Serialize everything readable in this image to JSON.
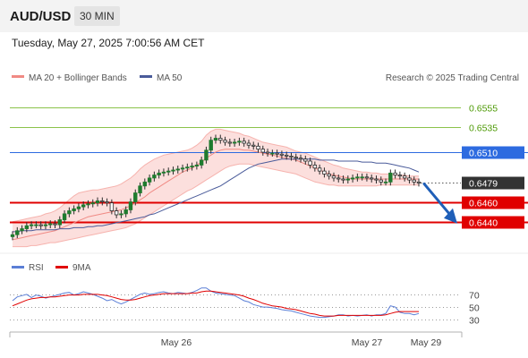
{
  "header": {
    "symbol": "AUD/USD",
    "timeframe": "30 MIN",
    "datetime": "Tuesday, May 27, 2025 7:00:56 AM CET"
  },
  "legend": {
    "bollinger": "MA 20 + Bollinger Bands",
    "ma50": "MA 50",
    "credit": "Research © 2025 Trading Central",
    "rsi": "RSI",
    "rsi_ma": "9MA"
  },
  "colors": {
    "bollinger": "#f08a84",
    "band_fill": "#fcd9d7",
    "ma50": "#4a5b9a",
    "resistance": "#8bc34a",
    "pivot": "#2d6be0",
    "support": "#e00000",
    "last": "#333333",
    "candle": "#1e7b2e",
    "arrow": "#1f5fb8",
    "rsi": "#5b7fd6",
    "rsi_ma": "#e00000"
  },
  "chart_data": [
    {
      "type": "candlestick",
      "title": "",
      "ylim": [
        0.6411,
        0.6573
      ],
      "x_ticks": [
        "May 26",
        "May 27",
        "May 29"
      ],
      "levels": [
        {
          "value": "0.6555",
          "kind": "resistance"
        },
        {
          "value": "0.6535",
          "kind": "resistance"
        },
        {
          "value": "0.6510",
          "kind": "pivot"
        },
        {
          "value": "0.6479",
          "kind": "last"
        },
        {
          "value": "0.6460",
          "kind": "support"
        },
        {
          "value": "0.6440",
          "kind": "support"
        }
      ],
      "price": [
        0.6427,
        0.6431,
        0.6433,
        0.6436,
        0.6437,
        0.6437,
        0.6436,
        0.6437,
        0.6438,
        0.6437,
        0.6442,
        0.6448,
        0.6451,
        0.6453,
        0.6455,
        0.6457,
        0.6458,
        0.6459,
        0.6461,
        0.646,
        0.6459,
        0.6451,
        0.6447,
        0.6448,
        0.6452,
        0.646,
        0.6469,
        0.6476,
        0.648,
        0.6484,
        0.6487,
        0.6489,
        0.649,
        0.6491,
        0.6492,
        0.6493,
        0.6494,
        0.6495,
        0.6496,
        0.6497,
        0.6502,
        0.6512,
        0.6522,
        0.6524,
        0.6522,
        0.652,
        0.6519,
        0.652,
        0.6521,
        0.6519,
        0.6517,
        0.6516,
        0.6513,
        0.651,
        0.6509,
        0.6509,
        0.6508,
        0.6507,
        0.6506,
        0.6505,
        0.6504,
        0.6503,
        0.6501,
        0.6497,
        0.6494,
        0.6491,
        0.6488,
        0.6486,
        0.6484,
        0.6483,
        0.6482,
        0.6483,
        0.6484,
        0.6485,
        0.6485,
        0.6484,
        0.6483,
        0.6482,
        0.648,
        0.648,
        0.6489,
        0.6487,
        0.6486,
        0.6484,
        0.6482,
        0.648,
        0.6479
      ],
      "ma20": [
        0.6422,
        0.6423,
        0.6424,
        0.6425,
        0.6426,
        0.6427,
        0.6428,
        0.6429,
        0.643,
        0.6431,
        0.6433,
        0.6435,
        0.6437,
        0.6439,
        0.6441,
        0.6443,
        0.6445,
        0.6446,
        0.6447,
        0.6448,
        0.6449,
        0.645,
        0.6451,
        0.6452,
        0.6454,
        0.6456,
        0.6459,
        0.6462,
        0.6465,
        0.6469,
        0.6472,
        0.6475,
        0.6478,
        0.6481,
        0.6484,
        0.6487,
        0.649,
        0.6492,
        0.6494,
        0.6497,
        0.65,
        0.6504,
        0.6507,
        0.651,
        0.6512,
        0.6513,
        0.6513,
        0.6513,
        0.6513,
        0.6512,
        0.6512,
        0.6511,
        0.651,
        0.6509,
        0.6508,
        0.6507,
        0.6506,
        0.6505,
        0.6504,
        0.6503,
        0.6502,
        0.65,
        0.6498,
        0.6496,
        0.6494,
        0.6492,
        0.649,
        0.6488,
        0.6487,
        0.6486,
        0.6485,
        0.6484,
        0.6483,
        0.6483,
        0.6483,
        0.6483,
        0.6483,
        0.6483,
        0.6483,
        0.6483,
        0.6483,
        0.6483,
        0.6483,
        0.6483,
        0.6483,
        0.6483,
        0.6483
      ],
      "bb_upper": [
        0.644,
        0.6441,
        0.6442,
        0.6443,
        0.6444,
        0.6445,
        0.6446,
        0.6448,
        0.6449,
        0.6451,
        0.6454,
        0.6458,
        0.6462,
        0.6466,
        0.6469,
        0.647,
        0.6471,
        0.6472,
        0.6472,
        0.6473,
        0.6474,
        0.6475,
        0.6476,
        0.6478,
        0.6481,
        0.6484,
        0.6488,
        0.6493,
        0.6497,
        0.65,
        0.6503,
        0.6505,
        0.6507,
        0.6508,
        0.6509,
        0.651,
        0.6511,
        0.6512,
        0.6514,
        0.6517,
        0.6521,
        0.6527,
        0.6531,
        0.6533,
        0.6533,
        0.6532,
        0.6531,
        0.653,
        0.6529,
        0.6527,
        0.6526,
        0.6524,
        0.6522,
        0.652,
        0.6519,
        0.6518,
        0.6517,
        0.6516,
        0.6515,
        0.6513,
        0.6511,
        0.651,
        0.6509,
        0.6507,
        0.6505,
        0.6503,
        0.6501,
        0.6499,
        0.6497,
        0.6496,
        0.6494,
        0.6493,
        0.6492,
        0.6491,
        0.649,
        0.649,
        0.6489,
        0.6489,
        0.6488,
        0.6488,
        0.6488,
        0.6487,
        0.6487,
        0.6487,
        0.6486,
        0.6486,
        0.6486
      ],
      "bb_lower": [
        0.6415,
        0.6415,
        0.6415,
        0.6415,
        0.6416,
        0.6416,
        0.6417,
        0.6418,
        0.6419,
        0.6419,
        0.642,
        0.6421,
        0.6422,
        0.6423,
        0.6424,
        0.6425,
        0.6426,
        0.6427,
        0.6428,
        0.6429,
        0.643,
        0.6431,
        0.6432,
        0.6433,
        0.6434,
        0.6436,
        0.6438,
        0.6441,
        0.6444,
        0.6447,
        0.645,
        0.6453,
        0.6456,
        0.6459,
        0.6462,
        0.6465,
        0.6468,
        0.6471,
        0.6473,
        0.6476,
        0.6479,
        0.6482,
        0.6485,
        0.6488,
        0.6491,
        0.6494,
        0.6496,
        0.6497,
        0.6498,
        0.6498,
        0.6498,
        0.6497,
        0.6496,
        0.6495,
        0.6494,
        0.6493,
        0.6492,
        0.6491,
        0.649,
        0.6489,
        0.6488,
        0.6486,
        0.6484,
        0.6482,
        0.648,
        0.6479,
        0.6478,
        0.6477,
        0.6477,
        0.6476,
        0.6476,
        0.6476,
        0.6476,
        0.6476,
        0.6476,
        0.6476,
        0.6476,
        0.6476,
        0.6477,
        0.6477,
        0.6477,
        0.6477,
        0.6477,
        0.6477,
        0.6477,
        0.6477,
        0.6477
      ],
      "ma50": [
        0.643,
        0.643,
        0.6431,
        0.6431,
        0.6431,
        0.6432,
        0.6432,
        0.6432,
        0.6432,
        0.6432,
        0.6433,
        0.6433,
        0.6433,
        0.6434,
        0.6434,
        0.6434,
        0.6435,
        0.6435,
        0.6436,
        0.6436,
        0.6437,
        0.6438,
        0.6439,
        0.644,
        0.6441,
        0.6442,
        0.6443,
        0.6444,
        0.6445,
        0.6447,
        0.6448,
        0.645,
        0.6452,
        0.6454,
        0.6456,
        0.6458,
        0.646,
        0.6462,
        0.6464,
        0.6466,
        0.6468,
        0.647,
        0.6472,
        0.6474,
        0.6476,
        0.6479,
        0.6482,
        0.6485,
        0.6488,
        0.6491,
        0.6494,
        0.6496,
        0.6498,
        0.6499,
        0.65,
        0.6501,
        0.6502,
        0.6503,
        0.6503,
        0.6503,
        0.6503,
        0.6503,
        0.6503,
        0.6503,
        0.6503,
        0.6502,
        0.6502,
        0.6502,
        0.6502,
        0.6501,
        0.6501,
        0.6501,
        0.6501,
        0.6501,
        0.65,
        0.65,
        0.65,
        0.6499,
        0.6499,
        0.6499,
        0.6498,
        0.6497,
        0.6496,
        0.6495,
        0.6494,
        0.6492,
        0.649
      ]
    },
    {
      "type": "line",
      "title": "",
      "ylim": [
        18,
        88
      ],
      "y_ticks": [
        "70",
        "50",
        "30"
      ],
      "series": [
        {
          "name": "RSI",
          "values": [
            60,
            66,
            68,
            70,
            65,
            69,
            67,
            64,
            66,
            68,
            70,
            72,
            73,
            69,
            71,
            74,
            72,
            70,
            67,
            64,
            60,
            62,
            58,
            55,
            58,
            62,
            66,
            70,
            72,
            70,
            71,
            73,
            74,
            72,
            71,
            73,
            72,
            71,
            73,
            76,
            80,
            80,
            75,
            72,
            71,
            70,
            69,
            68,
            64,
            60,
            58,
            54,
            52,
            50,
            50,
            49,
            48,
            46,
            45,
            44,
            42,
            40,
            38,
            36,
            35,
            34,
            34,
            35,
            36,
            38,
            38,
            36,
            37,
            36,
            37,
            38,
            36,
            38,
            38,
            40,
            52,
            50,
            42,
            40,
            40,
            38,
            40
          ]
        },
        {
          "name": "9MA",
          "values": [
            52,
            55,
            58,
            61,
            63,
            64,
            65,
            65,
            66,
            66,
            67,
            68,
            69,
            69,
            69,
            70,
            70,
            70,
            70,
            69,
            68,
            66,
            64,
            62,
            61,
            61,
            62,
            64,
            66,
            68,
            69,
            70,
            71,
            71,
            71,
            71,
            71,
            71,
            72,
            72,
            74,
            75,
            75,
            74,
            73,
            72,
            71,
            70,
            69,
            67,
            64,
            62,
            59,
            56,
            54,
            52,
            51,
            50,
            48,
            47,
            46,
            44,
            42,
            40,
            39,
            37,
            36,
            36,
            36,
            37,
            37,
            37,
            37,
            37,
            37,
            37,
            37,
            37,
            37,
            38,
            40,
            42,
            43,
            43,
            43,
            43,
            43
          ]
        }
      ]
    }
  ]
}
